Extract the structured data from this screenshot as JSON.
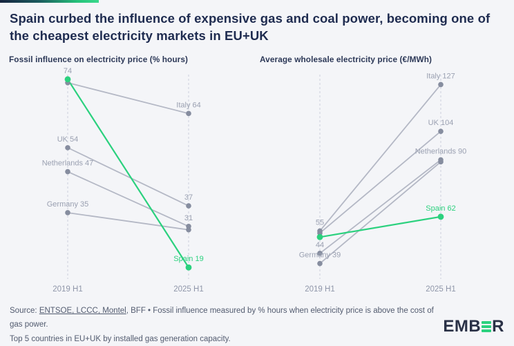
{
  "header": {
    "title": "Spain curbed the influence of expensive gas and coal power, becoming one of the cheapest electricity markets in EU+UK"
  },
  "colors": {
    "accent_green": "#2bd17e",
    "grey_line": "#b4b8c5",
    "grey_dot": "#868d9f",
    "label_grey": "#9aa0b1",
    "navy": "#1f2c50",
    "background": "#f4f5f8"
  },
  "chart_data": [
    {
      "id": "fossil",
      "type": "slope",
      "title": "Fossil influence on electricity price (% hours)",
      "x_categories": [
        "2019 H1",
        "2025 H1"
      ],
      "ylim": [
        14,
        78
      ],
      "grid": "dashed-vertical",
      "series": [
        {
          "name": "Italy",
          "color": "grey",
          "values": {
            "2019": 73,
            "2025": 64
          },
          "labels": {
            "2025": {
              "text": "Italy 64",
              "color": "grey"
            }
          }
        },
        {
          "name": "UK",
          "color": "grey",
          "values": {
            "2019": 54,
            "2025": 37
          },
          "labels": {
            "2019": {
              "text": "UK 54",
              "color": "grey"
            },
            "2025": {
              "text": "37",
              "color": "grey"
            }
          }
        },
        {
          "name": "Netherlands",
          "color": "grey",
          "values": {
            "2019": 47,
            "2025": 31
          },
          "labels": {
            "2019": {
              "text": "Netherlands 47",
              "color": "grey"
            },
            "2025": {
              "text": "31",
              "color": "grey"
            }
          }
        },
        {
          "name": "Germany",
          "color": "grey",
          "values": {
            "2019": 35,
            "2025": 30
          },
          "labels": {
            "2019": {
              "text": "Germany 35",
              "color": "grey"
            }
          }
        },
        {
          "name": "Spain",
          "color": "green",
          "values": {
            "2019": 74,
            "2025": 19
          },
          "labels": {
            "2019": {
              "text": "74",
              "color": "grey"
            },
            "2025": {
              "text": "Spain 19",
              "color": "green"
            }
          }
        }
      ]
    },
    {
      "id": "price",
      "type": "slope",
      "title": "Average wholesale electricity price (€/MWh)",
      "x_categories": [
        "2019 H1",
        "2025 H1"
      ],
      "ylim": [
        29,
        137
      ],
      "grid": "dashed-vertical",
      "series": [
        {
          "name": "Italy",
          "color": "grey",
          "values": {
            "2019": 55,
            "2025": 127
          },
          "labels": {
            "2019": {
              "text": "55",
              "color": "grey"
            },
            "2025": {
              "text": "Italy 127",
              "color": "grey"
            }
          }
        },
        {
          "name": "UK",
          "color": "grey",
          "values": {
            "2019": 54,
            "2025": 104
          },
          "labels": {
            "2025": {
              "text": "UK 104",
              "color": "grey"
            }
          }
        },
        {
          "name": "Netherlands",
          "color": "grey",
          "values": {
            "2019": 44,
            "2025": 90
          },
          "labels": {
            "2019": {
              "text": "44",
              "color": "grey"
            },
            "2025": {
              "text": "Netherlands 90",
              "color": "grey"
            }
          }
        },
        {
          "name": "Germany",
          "color": "grey",
          "values": {
            "2019": 39,
            "2025": 89
          },
          "labels": {
            "2019": {
              "text": "Germany 39",
              "color": "grey"
            }
          }
        },
        {
          "name": "Spain",
          "color": "green",
          "values": {
            "2019": 52,
            "2025": 62
          },
          "labels": {
            "2025": {
              "text": "Spain 62",
              "color": "green"
            }
          }
        }
      ]
    }
  ],
  "footer": {
    "source_prefix": "Source: ",
    "source_link": "ENTSOE, LCCC, Montel",
    "source_rest": ", BFF • Fossil influence measured by % hours when electricity price is above the cost of gas power.",
    "note": "Top 5 countries in EU+UK by installed gas generation capacity."
  },
  "logo": {
    "text_start": "EMB",
    "text_end": "R"
  }
}
